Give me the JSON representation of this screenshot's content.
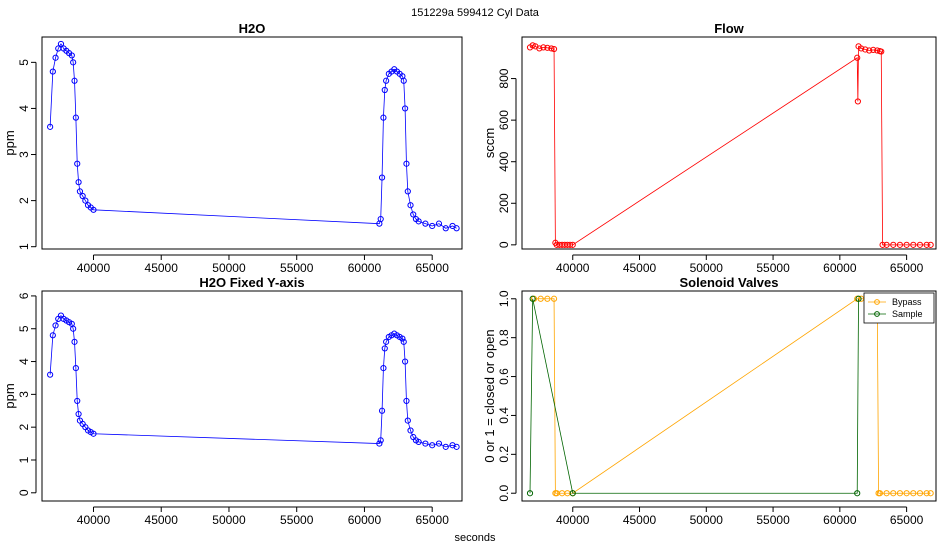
{
  "figure": {
    "suptitle": "151229a    599412    Cyl Data",
    "xlabel": "seconds"
  },
  "chart_data": [
    {
      "id": "h2o",
      "type": "scatter",
      "title": "H2O",
      "ylabel": "ppm",
      "xlim": [
        36200,
        67200
      ],
      "ylim": [
        0.95,
        5.55
      ],
      "xticks": [
        40000,
        45000,
        50000,
        55000,
        60000,
        65000
      ],
      "yticks": [
        1,
        2,
        3,
        4,
        5
      ],
      "color": "#0000ff",
      "series": [
        {
          "x": [
            36800,
            37000,
            37200,
            37400,
            37600,
            37800,
            38000,
            38200,
            38400,
            38500,
            38600,
            38700,
            38800,
            38900,
            39000,
            39200,
            39400,
            39600,
            39800,
            40000,
            61100,
            61200,
            61300,
            61400,
            61500,
            61600,
            61800,
            62000,
            62200,
            62400,
            62600,
            62800,
            62900,
            63000,
            63100,
            63200,
            63400,
            63600,
            63800,
            64000,
            64500,
            65000,
            65500,
            66000,
            66500,
            66800
          ],
          "y": [
            3.6,
            4.8,
            5.1,
            5.3,
            5.4,
            5.3,
            5.25,
            5.2,
            5.15,
            5.0,
            4.6,
            3.8,
            2.8,
            2.4,
            2.2,
            2.1,
            2.0,
            1.9,
            1.85,
            1.8,
            1.5,
            1.6,
            2.5,
            3.8,
            4.4,
            4.6,
            4.75,
            4.8,
            4.85,
            4.8,
            4.75,
            4.7,
            4.6,
            4.0,
            2.8,
            2.2,
            1.9,
            1.7,
            1.6,
            1.55,
            1.5,
            1.45,
            1.5,
            1.4,
            1.45,
            1.4
          ]
        }
      ]
    },
    {
      "id": "flow",
      "type": "scatter",
      "title": "Flow",
      "ylabel": "sccm",
      "xlim": [
        36200,
        67200
      ],
      "ylim": [
        -20,
        1000
      ],
      "xticks": [
        40000,
        45000,
        50000,
        55000,
        60000,
        65000
      ],
      "yticks": [
        0,
        200,
        400,
        600,
        800
      ],
      "color": "#ff0000",
      "series": [
        {
          "x": [
            36800,
            37000,
            37200,
            37500,
            37800,
            38100,
            38400,
            38600,
            38700,
            38800,
            39000,
            39200,
            39400,
            39600,
            39800,
            40000,
            61300,
            61350,
            61400,
            61600,
            61900,
            62200,
            62500,
            62800,
            63000,
            63100,
            63200,
            63500,
            64000,
            64500,
            65000,
            65500,
            66000,
            66500,
            66800
          ],
          "y": [
            950,
            960,
            955,
            945,
            950,
            948,
            945,
            942,
            10,
            0,
            0,
            0,
            0,
            0,
            0,
            0,
            900,
            690,
            955,
            945,
            940,
            935,
            938,
            935,
            932,
            930,
            0,
            0,
            0,
            0,
            0,
            0,
            0,
            0,
            0
          ]
        }
      ]
    },
    {
      "id": "h2o-fixed",
      "type": "scatter",
      "title": "H2O Fixed Y-axis",
      "ylabel": "ppm",
      "xlim": [
        36200,
        67200
      ],
      "ylim": [
        -0.25,
        6.15
      ],
      "xticks": [
        40000,
        45000,
        50000,
        55000,
        60000,
        65000
      ],
      "yticks": [
        0,
        1,
        2,
        3,
        4,
        5,
        6
      ],
      "color": "#0000ff",
      "series": [
        {
          "x": [
            36800,
            37000,
            37200,
            37400,
            37600,
            37800,
            38000,
            38200,
            38400,
            38500,
            38600,
            38700,
            38800,
            38900,
            39000,
            39200,
            39400,
            39600,
            39800,
            40000,
            61100,
            61200,
            61300,
            61400,
            61500,
            61600,
            61800,
            62000,
            62200,
            62400,
            62600,
            62800,
            62900,
            63000,
            63100,
            63200,
            63400,
            63600,
            63800,
            64000,
            64500,
            65000,
            65500,
            66000,
            66500,
            66800
          ],
          "y": [
            3.6,
            4.8,
            5.1,
            5.3,
            5.4,
            5.3,
            5.25,
            5.2,
            5.15,
            5.0,
            4.6,
            3.8,
            2.8,
            2.4,
            2.2,
            2.1,
            2.0,
            1.9,
            1.85,
            1.8,
            1.5,
            1.6,
            2.5,
            3.8,
            4.4,
            4.6,
            4.75,
            4.8,
            4.85,
            4.8,
            4.75,
            4.7,
            4.6,
            4.0,
            2.8,
            2.2,
            1.9,
            1.7,
            1.6,
            1.55,
            1.5,
            1.45,
            1.5,
            1.4,
            1.45,
            1.4
          ]
        }
      ]
    },
    {
      "id": "valves",
      "type": "line",
      "title": "Solenoid Valves",
      "ylabel": "0 or 1 = closed or open",
      "xlim": [
        36200,
        67200
      ],
      "ylim": [
        -0.04,
        1.04
      ],
      "xticks": [
        40000,
        45000,
        50000,
        55000,
        60000,
        65000
      ],
      "yticks": [
        0.0,
        0.2,
        0.4,
        0.6,
        0.8,
        1.0
      ],
      "legend": {
        "placement": "top-right",
        "entries": [
          "Bypass",
          "Sample"
        ]
      },
      "series": [
        {
          "name": "Bypass",
          "color": "#ffa500",
          "x": [
            37100,
            37600,
            38100,
            38600,
            38700,
            38800,
            39200,
            39600,
            40000,
            61300,
            61600,
            62000,
            62400,
            62800,
            62900,
            63000,
            63500,
            64000,
            64500,
            65000,
            65500,
            66000,
            66500,
            66800
          ],
          "y": [
            1,
            1,
            1,
            1,
            0,
            0,
            0,
            0,
            0,
            1,
            1,
            1,
            1,
            1,
            0,
            0,
            0,
            0,
            0,
            0,
            0,
            0,
            0,
            0
          ]
        },
        {
          "name": "Sample",
          "color": "#006400",
          "x": [
            36800,
            37000,
            40000,
            61300,
            61400
          ],
          "y": [
            0,
            1,
            0,
            0,
            1
          ]
        }
      ]
    }
  ]
}
